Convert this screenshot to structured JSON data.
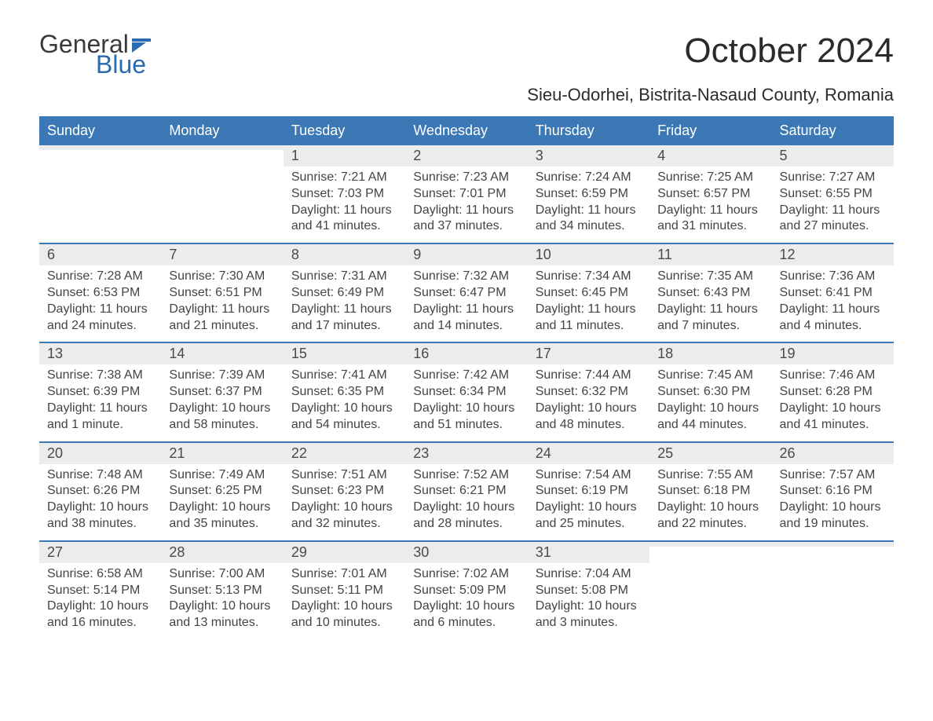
{
  "logo": {
    "word1": "General",
    "word2": "Blue",
    "flag_color": "#2a6ab0"
  },
  "header": {
    "month_title": "October 2024",
    "location": "Sieu-Odorhei, Bistrita-Nasaud County, Romania"
  },
  "colors": {
    "header_bar": "#3b78b5",
    "week_divider": "#3b78b5",
    "daynum_bg": "#ececec",
    "text": "#444444",
    "title_text": "#2b2b2b",
    "logo_gray": "#3a3a3a",
    "logo_blue": "#2a6ab0",
    "background": "#ffffff"
  },
  "typography": {
    "month_title_fontsize": 44,
    "location_fontsize": 22,
    "dow_fontsize": 18,
    "daynum_fontsize": 18,
    "body_fontsize": 16,
    "logo_fontsize": 32
  },
  "days_of_week": [
    "Sunday",
    "Monday",
    "Tuesday",
    "Wednesday",
    "Thursday",
    "Friday",
    "Saturday"
  ],
  "weeks": [
    [
      {
        "num": "",
        "sunrise": "",
        "sunset": "",
        "daylight": ""
      },
      {
        "num": "",
        "sunrise": "",
        "sunset": "",
        "daylight": ""
      },
      {
        "num": "1",
        "sunrise": "Sunrise: 7:21 AM",
        "sunset": "Sunset: 7:03 PM",
        "daylight": "Daylight: 11 hours and 41 minutes."
      },
      {
        "num": "2",
        "sunrise": "Sunrise: 7:23 AM",
        "sunset": "Sunset: 7:01 PM",
        "daylight": "Daylight: 11 hours and 37 minutes."
      },
      {
        "num": "3",
        "sunrise": "Sunrise: 7:24 AM",
        "sunset": "Sunset: 6:59 PM",
        "daylight": "Daylight: 11 hours and 34 minutes."
      },
      {
        "num": "4",
        "sunrise": "Sunrise: 7:25 AM",
        "sunset": "Sunset: 6:57 PM",
        "daylight": "Daylight: 11 hours and 31 minutes."
      },
      {
        "num": "5",
        "sunrise": "Sunrise: 7:27 AM",
        "sunset": "Sunset: 6:55 PM",
        "daylight": "Daylight: 11 hours and 27 minutes."
      }
    ],
    [
      {
        "num": "6",
        "sunrise": "Sunrise: 7:28 AM",
        "sunset": "Sunset: 6:53 PM",
        "daylight": "Daylight: 11 hours and 24 minutes."
      },
      {
        "num": "7",
        "sunrise": "Sunrise: 7:30 AM",
        "sunset": "Sunset: 6:51 PM",
        "daylight": "Daylight: 11 hours and 21 minutes."
      },
      {
        "num": "8",
        "sunrise": "Sunrise: 7:31 AM",
        "sunset": "Sunset: 6:49 PM",
        "daylight": "Daylight: 11 hours and 17 minutes."
      },
      {
        "num": "9",
        "sunrise": "Sunrise: 7:32 AM",
        "sunset": "Sunset: 6:47 PM",
        "daylight": "Daylight: 11 hours and 14 minutes."
      },
      {
        "num": "10",
        "sunrise": "Sunrise: 7:34 AM",
        "sunset": "Sunset: 6:45 PM",
        "daylight": "Daylight: 11 hours and 11 minutes."
      },
      {
        "num": "11",
        "sunrise": "Sunrise: 7:35 AM",
        "sunset": "Sunset: 6:43 PM",
        "daylight": "Daylight: 11 hours and 7 minutes."
      },
      {
        "num": "12",
        "sunrise": "Sunrise: 7:36 AM",
        "sunset": "Sunset: 6:41 PM",
        "daylight": "Daylight: 11 hours and 4 minutes."
      }
    ],
    [
      {
        "num": "13",
        "sunrise": "Sunrise: 7:38 AM",
        "sunset": "Sunset: 6:39 PM",
        "daylight": "Daylight: 11 hours and 1 minute."
      },
      {
        "num": "14",
        "sunrise": "Sunrise: 7:39 AM",
        "sunset": "Sunset: 6:37 PM",
        "daylight": "Daylight: 10 hours and 58 minutes."
      },
      {
        "num": "15",
        "sunrise": "Sunrise: 7:41 AM",
        "sunset": "Sunset: 6:35 PM",
        "daylight": "Daylight: 10 hours and 54 minutes."
      },
      {
        "num": "16",
        "sunrise": "Sunrise: 7:42 AM",
        "sunset": "Sunset: 6:34 PM",
        "daylight": "Daylight: 10 hours and 51 minutes."
      },
      {
        "num": "17",
        "sunrise": "Sunrise: 7:44 AM",
        "sunset": "Sunset: 6:32 PM",
        "daylight": "Daylight: 10 hours and 48 minutes."
      },
      {
        "num": "18",
        "sunrise": "Sunrise: 7:45 AM",
        "sunset": "Sunset: 6:30 PM",
        "daylight": "Daylight: 10 hours and 44 minutes."
      },
      {
        "num": "19",
        "sunrise": "Sunrise: 7:46 AM",
        "sunset": "Sunset: 6:28 PM",
        "daylight": "Daylight: 10 hours and 41 minutes."
      }
    ],
    [
      {
        "num": "20",
        "sunrise": "Sunrise: 7:48 AM",
        "sunset": "Sunset: 6:26 PM",
        "daylight": "Daylight: 10 hours and 38 minutes."
      },
      {
        "num": "21",
        "sunrise": "Sunrise: 7:49 AM",
        "sunset": "Sunset: 6:25 PM",
        "daylight": "Daylight: 10 hours and 35 minutes."
      },
      {
        "num": "22",
        "sunrise": "Sunrise: 7:51 AM",
        "sunset": "Sunset: 6:23 PM",
        "daylight": "Daylight: 10 hours and 32 minutes."
      },
      {
        "num": "23",
        "sunrise": "Sunrise: 7:52 AM",
        "sunset": "Sunset: 6:21 PM",
        "daylight": "Daylight: 10 hours and 28 minutes."
      },
      {
        "num": "24",
        "sunrise": "Sunrise: 7:54 AM",
        "sunset": "Sunset: 6:19 PM",
        "daylight": "Daylight: 10 hours and 25 minutes."
      },
      {
        "num": "25",
        "sunrise": "Sunrise: 7:55 AM",
        "sunset": "Sunset: 6:18 PM",
        "daylight": "Daylight: 10 hours and 22 minutes."
      },
      {
        "num": "26",
        "sunrise": "Sunrise: 7:57 AM",
        "sunset": "Sunset: 6:16 PM",
        "daylight": "Daylight: 10 hours and 19 minutes."
      }
    ],
    [
      {
        "num": "27",
        "sunrise": "Sunrise: 6:58 AM",
        "sunset": "Sunset: 5:14 PM",
        "daylight": "Daylight: 10 hours and 16 minutes."
      },
      {
        "num": "28",
        "sunrise": "Sunrise: 7:00 AM",
        "sunset": "Sunset: 5:13 PM",
        "daylight": "Daylight: 10 hours and 13 minutes."
      },
      {
        "num": "29",
        "sunrise": "Sunrise: 7:01 AM",
        "sunset": "Sunset: 5:11 PM",
        "daylight": "Daylight: 10 hours and 10 minutes."
      },
      {
        "num": "30",
        "sunrise": "Sunrise: 7:02 AM",
        "sunset": "Sunset: 5:09 PM",
        "daylight": "Daylight: 10 hours and 6 minutes."
      },
      {
        "num": "31",
        "sunrise": "Sunrise: 7:04 AM",
        "sunset": "Sunset: 5:08 PM",
        "daylight": "Daylight: 10 hours and 3 minutes."
      },
      {
        "num": "",
        "sunrise": "",
        "sunset": "",
        "daylight": ""
      },
      {
        "num": "",
        "sunrise": "",
        "sunset": "",
        "daylight": ""
      }
    ]
  ]
}
